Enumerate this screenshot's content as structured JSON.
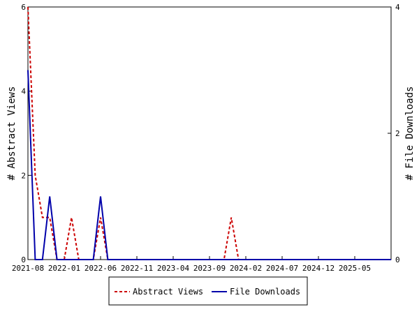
{
  "chart_data": {
    "type": "line",
    "xlabel": "",
    "ylabel_left": "# Abstract Views",
    "ylabel_right": "# File Downloads",
    "ylim_left": [
      0,
      6
    ],
    "ylim_right": [
      0,
      4
    ],
    "left_ticks": [
      "0",
      "2",
      "4",
      "6"
    ],
    "right_ticks": [
      "0",
      "2",
      "4"
    ],
    "x_range": [
      "2021-08",
      "2025-10"
    ],
    "x_tick_labels": [
      "2021-08",
      "2022-01",
      "2022-06",
      "2022-11",
      "2023-04",
      "2023-09",
      "2024-02",
      "2024-07",
      "2024-12",
      "2025-05"
    ],
    "grid": false,
    "legend_position": "bottom",
    "series": [
      {
        "name": "Abstract Views",
        "axis": "left",
        "color": "#cc0000",
        "dash": "dashed",
        "x": [
          "2021-08",
          "2021-09",
          "2021-10",
          "2021-11",
          "2021-12",
          "2022-01",
          "2022-02",
          "2022-03",
          "2022-04",
          "2022-05",
          "2022-06",
          "2022-07",
          "2022-08",
          "2022-09",
          "2022-10",
          "2022-11",
          "2022-12",
          "2023-01",
          "2023-02",
          "2023-03",
          "2023-04",
          "2023-05",
          "2023-06",
          "2023-07",
          "2023-08",
          "2023-09",
          "2023-10",
          "2023-11",
          "2023-12",
          "2024-01",
          "2024-02",
          "2024-03",
          "2024-04",
          "2024-05",
          "2024-06",
          "2024-07",
          "2024-08",
          "2024-09",
          "2024-10",
          "2024-11",
          "2024-12",
          "2025-01",
          "2025-02",
          "2025-03",
          "2025-04",
          "2025-05",
          "2025-06",
          "2025-07",
          "2025-08",
          "2025-09",
          "2025-10"
        ],
        "values": [
          6,
          2,
          1,
          1,
          0,
          0,
          1,
          0,
          0,
          0,
          1,
          0,
          0,
          0,
          0,
          0,
          0,
          0,
          0,
          0,
          0,
          0,
          0,
          0,
          0,
          0,
          0,
          0,
          1,
          0,
          0,
          0,
          0,
          0,
          0,
          0,
          0,
          0,
          0,
          0,
          0,
          0,
          0,
          0,
          0,
          0,
          0,
          0,
          0,
          0,
          0
        ]
      },
      {
        "name": "File Downloads",
        "axis": "right",
        "color": "#0000aa",
        "dash": "solid",
        "x": [
          "2021-08",
          "2021-09",
          "2021-10",
          "2021-11",
          "2021-12",
          "2022-01",
          "2022-02",
          "2022-03",
          "2022-04",
          "2022-05",
          "2022-06",
          "2022-07",
          "2022-08",
          "2022-09",
          "2022-10",
          "2022-11",
          "2022-12",
          "2023-01",
          "2023-02",
          "2023-03",
          "2023-04",
          "2023-05",
          "2023-06",
          "2023-07",
          "2023-08",
          "2023-09",
          "2023-10",
          "2023-11",
          "2023-12",
          "2024-01",
          "2024-02",
          "2024-03",
          "2024-04",
          "2024-05",
          "2024-06",
          "2024-07",
          "2024-08",
          "2024-09",
          "2024-10",
          "2024-11",
          "2024-12",
          "2025-01",
          "2025-02",
          "2025-03",
          "2025-04",
          "2025-05",
          "2025-06",
          "2025-07",
          "2025-08",
          "2025-09",
          "2025-10"
        ],
        "values": [
          3,
          0,
          0,
          1,
          0,
          0,
          0,
          0,
          0,
          0,
          1,
          0,
          0,
          0,
          0,
          0,
          0,
          0,
          0,
          0,
          0,
          0,
          0,
          0,
          0,
          0,
          0,
          0,
          0,
          0,
          0,
          0,
          0,
          0,
          0,
          0,
          0,
          0,
          0,
          0,
          0,
          0,
          0,
          0,
          0,
          0,
          0,
          0,
          0,
          0,
          0
        ]
      }
    ]
  }
}
